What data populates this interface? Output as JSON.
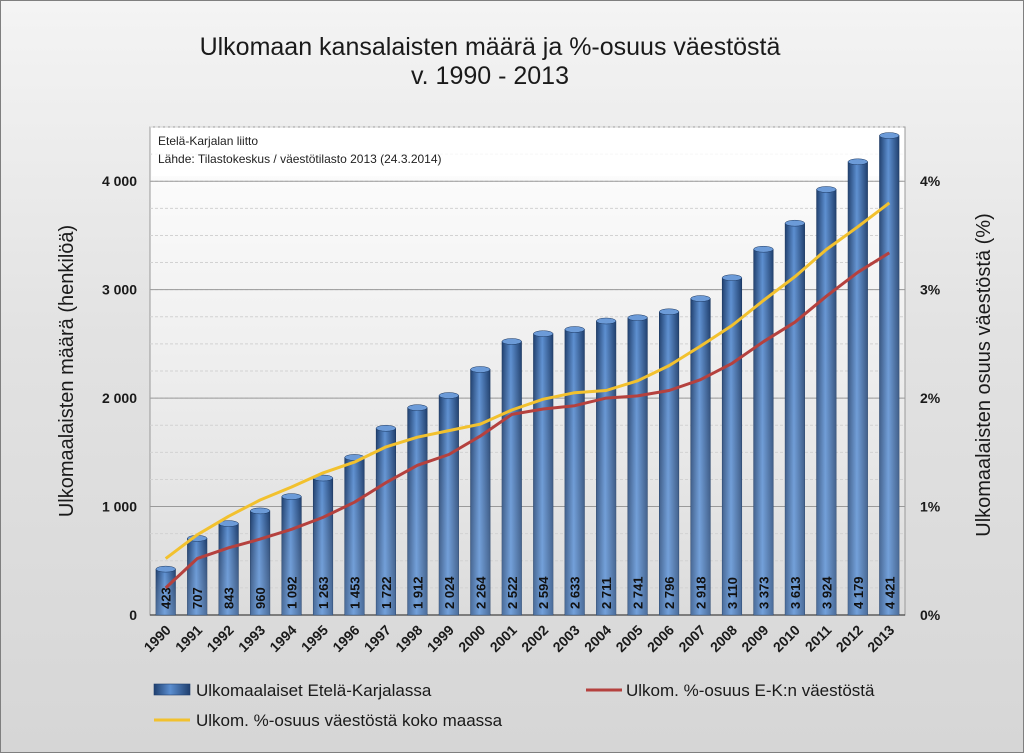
{
  "chart_data": {
    "type": "bar",
    "title_line1": "Ulkomaan kansalaisten määrä ja %-osuus väestöstä",
    "title_line2": "v. 1990 - 2013",
    "source_line1": "Etelä-Karjalan liitto",
    "source_line2": "Lähde: Tilastokeskus / väestötilasto 2013  (24.3.2014)",
    "ylabel": "Ulkomaalaisten määrä (henkilöä)",
    "y2label": "Ulkomaalaisten osuus väestöstä (%)",
    "ylim": [
      0,
      4500
    ],
    "y_ticks": [
      0,
      1000,
      2000,
      3000,
      4000
    ],
    "y_tick_labels": [
      "0",
      "1 000",
      "2 000",
      "3 000",
      "4 000"
    ],
    "y2lim": [
      0,
      4.5
    ],
    "y2_ticks": [
      0,
      1,
      2,
      3,
      4
    ],
    "y2_tick_labels": [
      "0%",
      "1%",
      "2%",
      "3%",
      "4%"
    ],
    "grid": true,
    "legend_position": "bottom",
    "categories": [
      "1990",
      "1991",
      "1992",
      "1993",
      "1994",
      "1995",
      "1996",
      "1997",
      "1998",
      "1999",
      "2000",
      "2001",
      "2002",
      "2003",
      "2004",
      "2005",
      "2006",
      "2007",
      "2008",
      "2009",
      "2010",
      "2011",
      "2012",
      "2013"
    ],
    "series": [
      {
        "name": "Ulkomaalaiset Etelä-Karjalassa",
        "type": "bar",
        "axis": "left",
        "color": "#2e5f9e",
        "values": [
          423,
          707,
          843,
          960,
          1092,
          1263,
          1453,
          1722,
          1912,
          2024,
          2264,
          2522,
          2594,
          2633,
          2711,
          2741,
          2796,
          2918,
          3110,
          3373,
          3613,
          3924,
          4179,
          4421
        ],
        "value_labels": [
          "423",
          "707",
          "843",
          "960",
          "1 092",
          "1 263",
          "1 453",
          "1 722",
          "1 912",
          "2 024",
          "2 264",
          "2 522",
          "2 594",
          "2 633",
          "2 711",
          "2 741",
          "2 796",
          "2 918",
          "3 110",
          "3 373",
          "3 613",
          "3 924",
          "4 179",
          "4 421"
        ]
      },
      {
        "name": "Ulkom. %-osuus E-K:n väestöstä",
        "type": "line",
        "axis": "right",
        "color": "#b5413e",
        "values": [
          0.25,
          0.52,
          0.62,
          0.7,
          0.79,
          0.9,
          1.04,
          1.22,
          1.38,
          1.48,
          1.65,
          1.85,
          1.9,
          1.93,
          2.0,
          2.02,
          2.07,
          2.17,
          2.32,
          2.52,
          2.7,
          2.94,
          3.16,
          3.34
        ]
      },
      {
        "name": "Ulkom. %-osuus väestöstä koko maassa",
        "type": "line",
        "axis": "right",
        "color": "#f2c12e",
        "values": [
          0.52,
          0.74,
          0.91,
          1.06,
          1.18,
          1.31,
          1.41,
          1.55,
          1.64,
          1.7,
          1.76,
          1.89,
          1.99,
          2.05,
          2.07,
          2.16,
          2.3,
          2.48,
          2.67,
          2.9,
          3.12,
          3.37,
          3.58,
          3.8
        ]
      }
    ]
  }
}
